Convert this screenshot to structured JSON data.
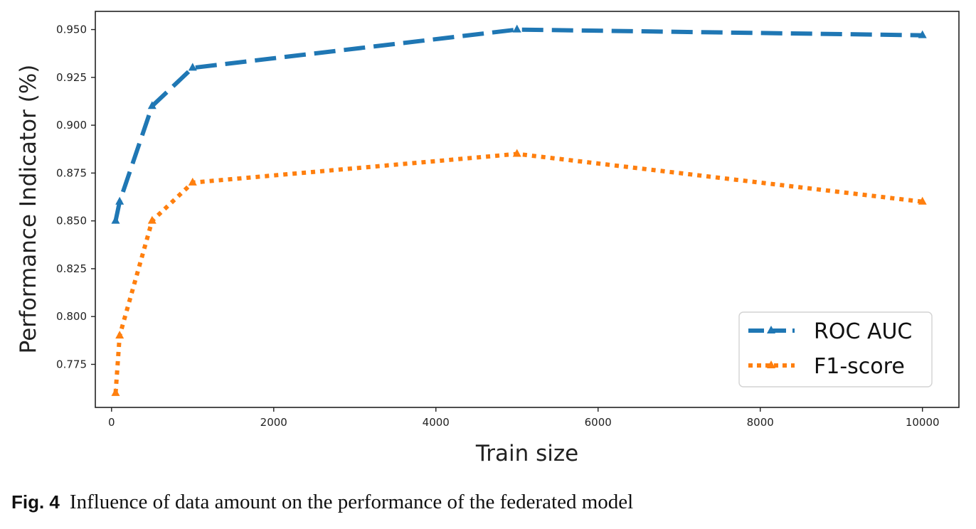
{
  "chart_data": {
    "type": "line",
    "title": "",
    "xlabel": "Train size",
    "ylabel": "Performance Indicator (%)",
    "xlim": [
      -200,
      10450
    ],
    "ylim": [
      0.7525,
      0.9595
    ],
    "x_ticks": [
      0,
      2000,
      4000,
      6000,
      8000,
      10000
    ],
    "y_ticks": [
      0.775,
      0.8,
      0.825,
      0.85,
      0.875,
      0.9,
      0.925,
      0.95
    ],
    "grid": false,
    "legend_position": "bottom-right",
    "series": [
      {
        "name": "ROC AUC",
        "color": "#1f77b4",
        "line_style": "dashed",
        "marker": "triangle-up",
        "x": [
          50,
          100,
          500,
          1000,
          5000,
          10000
        ],
        "y": [
          0.85,
          0.86,
          0.91,
          0.93,
          0.95,
          0.947
        ]
      },
      {
        "name": "F1-score",
        "color": "#ff7f0e",
        "line_style": "dotted",
        "marker": "triangle-up",
        "x": [
          50,
          100,
          500,
          1000,
          5000,
          10000
        ],
        "y": [
          0.76,
          0.79,
          0.85,
          0.87,
          0.885,
          0.86
        ]
      }
    ]
  },
  "caption": {
    "label": "Fig. 4",
    "text": "Influence of data amount on the performance of the federated model"
  }
}
